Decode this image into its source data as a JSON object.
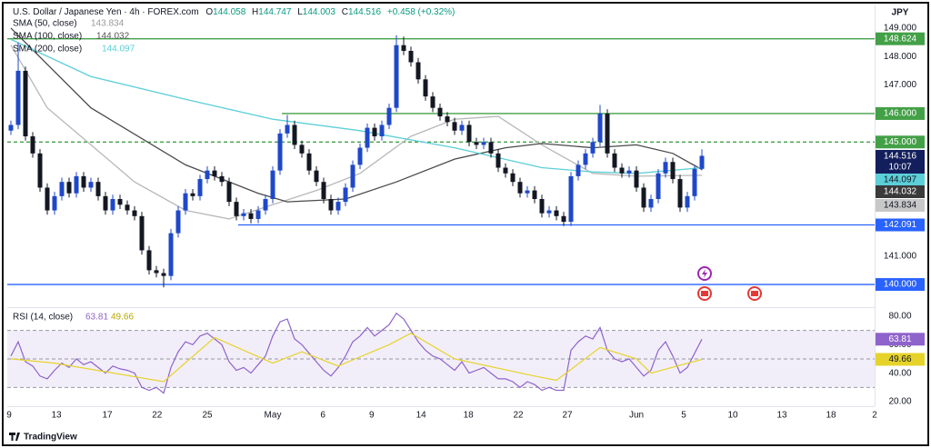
{
  "header": {
    "symbol": "U.S. Dollar / Japanese Yen · 4h · FOREX.com",
    "ohlc_letters": [
      "O",
      "H",
      "L",
      "C"
    ],
    "change": "+0.458 (+0.32%)"
  },
  "currency": "JPY",
  "countdown": "10:07",
  "branding": "TradingView",
  "chart_data": [
    {
      "type": "candlestick",
      "up_color": "#1f48c9",
      "down_color": "#131722",
      "xlim": [
        0,
        119.25
      ],
      "xticks": [
        {
          "value": 0.25,
          "label": "9"
        },
        {
          "value": 6.75,
          "label": "13"
        },
        {
          "value": 13.75,
          "label": "17"
        },
        {
          "value": 20.6,
          "label": "22"
        },
        {
          "value": 27.5,
          "label": "25"
        },
        {
          "value": 36.5,
          "label": "May"
        },
        {
          "value": 43.4,
          "label": "6"
        },
        {
          "value": 50.1,
          "label": "9"
        },
        {
          "value": 56.9,
          "label": "14"
        },
        {
          "value": 63.4,
          "label": "18"
        },
        {
          "value": 70.25,
          "label": "22"
        },
        {
          "value": 77,
          "label": "27"
        },
        {
          "value": 86.5,
          "label": "Jun"
        },
        {
          "value": 93,
          "label": "5"
        },
        {
          "value": 99.75,
          "label": "10"
        },
        {
          "value": 106.5,
          "label": "13"
        },
        {
          "value": 113.25,
          "label": "18"
        },
        {
          "value": 119.25,
          "label": "2"
        }
      ],
      "ylim": [
        139.3,
        149.73
      ],
      "yticks": [
        {
          "value": 149,
          "label": "149.000"
        },
        {
          "value": 148,
          "label": "148.000"
        },
        {
          "value": 147,
          "label": "147.000"
        },
        {
          "value": 141,
          "label": "141.000"
        }
      ],
      "candles": [
        [
          145.4,
          145.75,
          145.25,
          145.6
        ],
        [
          145.6,
          148.5,
          145.45,
          147.5
        ],
        [
          147.5,
          147.65,
          145.05,
          145.2
        ],
        [
          145.2,
          145.35,
          144.45,
          144.6
        ],
        [
          144.6,
          144.75,
          143.25,
          143.4
        ],
        [
          143.4,
          143.55,
          142.45,
          142.6
        ],
        [
          142.6,
          143.25,
          142.45,
          143.1
        ],
        [
          143.1,
          143.75,
          142.95,
          143.6
        ],
        [
          143.6,
          143.75,
          143.05,
          143.2
        ],
        [
          143.2,
          143.95,
          143.05,
          143.8
        ],
        [
          143.8,
          143.95,
          143.25,
          143.4
        ],
        [
          143.4,
          143.75,
          143.25,
          143.6
        ],
        [
          143.6,
          143.75,
          142.95,
          143.1
        ],
        [
          143.1,
          143.25,
          142.45,
          142.6
        ],
        [
          142.6,
          143.15,
          142.45,
          143
        ],
        [
          143,
          143.15,
          142.65,
          142.8
        ],
        [
          142.8,
          142.95,
          142.45,
          142.6
        ],
        [
          142.6,
          142.75,
          142.25,
          142.4
        ],
        [
          142.4,
          142.55,
          141.05,
          141.2
        ],
        [
          141.2,
          141.35,
          140.35,
          140.5
        ],
        [
          140.5,
          140.65,
          140.25,
          140.4
        ],
        [
          140.4,
          140.55,
          139.9,
          140.3
        ],
        [
          140.3,
          141.95,
          140.15,
          141.8
        ],
        [
          141.8,
          142.75,
          141.65,
          142.6
        ],
        [
          142.6,
          143.35,
          142.45,
          143.2
        ],
        [
          143.2,
          143.35,
          142.95,
          143.1
        ],
        [
          143.1,
          143.85,
          142.95,
          143.7
        ],
        [
          143.7,
          144.15,
          143.55,
          144
        ],
        [
          144,
          144.15,
          143.65,
          143.8
        ],
        [
          143.8,
          143.95,
          143.45,
          143.6
        ],
        [
          143.6,
          143.75,
          142.75,
          142.9
        ],
        [
          142.9,
          143.05,
          142.25,
          142.4
        ],
        [
          142.4,
          142.65,
          142.25,
          142.5
        ],
        [
          142.5,
          142.65,
          142.15,
          142.3
        ],
        [
          142.3,
          142.75,
          142.15,
          142.6
        ],
        [
          142.6,
          143.15,
          142.45,
          143
        ],
        [
          143,
          144.15,
          142.85,
          144
        ],
        [
          144,
          145.45,
          143.85,
          145.3
        ],
        [
          145.3,
          145.95,
          145.15,
          145.6
        ],
        [
          145.6,
          145.75,
          144.75,
          144.9
        ],
        [
          144.9,
          145.05,
          144.45,
          144.6
        ],
        [
          144.6,
          144.75,
          143.85,
          144
        ],
        [
          144,
          144.15,
          143.45,
          143.6
        ],
        [
          143.6,
          143.75,
          142.85,
          143
        ],
        [
          143,
          143.15,
          142.45,
          142.6
        ],
        [
          142.6,
          143.05,
          142.45,
          142.9
        ],
        [
          142.9,
          143.55,
          142.75,
          143.4
        ],
        [
          143.4,
          144.35,
          143.25,
          144.2
        ],
        [
          144.2,
          144.95,
          144.05,
          144.8
        ],
        [
          144.8,
          145.65,
          144.65,
          145.5
        ],
        [
          145.5,
          145.65,
          145.05,
          145.2
        ],
        [
          145.2,
          145.75,
          145.05,
          145.6
        ],
        [
          145.6,
          146.35,
          145.45,
          146.2
        ],
        [
          146.2,
          148.75,
          146.05,
          148.4
        ],
        [
          148.4,
          148.7,
          148.05,
          148.2
        ],
        [
          148.2,
          148.35,
          147.65,
          147.8
        ],
        [
          147.8,
          147.95,
          147.05,
          147.2
        ],
        [
          147.2,
          147.35,
          146.45,
          146.6
        ],
        [
          146.6,
          146.75,
          146.05,
          146.2
        ],
        [
          146.2,
          146.35,
          145.75,
          145.9
        ],
        [
          145.9,
          146.05,
          145.55,
          145.7
        ],
        [
          145.7,
          145.85,
          145.25,
          145.4
        ],
        [
          145.4,
          145.75,
          145.25,
          145.6
        ],
        [
          145.6,
          145.75,
          144.85,
          145
        ],
        [
          145,
          145.15,
          144.75,
          144.9
        ],
        [
          144.9,
          145.15,
          144.75,
          145
        ],
        [
          145,
          145.15,
          144.45,
          144.6
        ],
        [
          144.6,
          144.75,
          143.95,
          144.1
        ],
        [
          144.1,
          144.25,
          143.75,
          143.9
        ],
        [
          143.9,
          144.05,
          143.45,
          143.6
        ],
        [
          143.6,
          143.75,
          143.05,
          143.2
        ],
        [
          143.2,
          143.45,
          143.05,
          143.3
        ],
        [
          143.3,
          143.45,
          142.85,
          143
        ],
        [
          143,
          143.15,
          142.35,
          142.5
        ],
        [
          142.5,
          142.75,
          142.35,
          142.6
        ],
        [
          142.6,
          142.75,
          142.25,
          142.4
        ],
        [
          142.4,
          142.55,
          142.05,
          142.2
        ],
        [
          142.2,
          143.95,
          142.05,
          143.8
        ],
        [
          143.8,
          144.35,
          143.65,
          144.2
        ],
        [
          144.2,
          144.75,
          144.05,
          144.6
        ],
        [
          144.6,
          145.15,
          144.45,
          145
        ],
        [
          145,
          146.3,
          144.85,
          146
        ],
        [
          146,
          146.15,
          144.45,
          144.6
        ],
        [
          144.6,
          144.75,
          143.95,
          144.1
        ],
        [
          144.1,
          144.25,
          143.75,
          143.9
        ],
        [
          143.9,
          144.15,
          143.75,
          144
        ],
        [
          144,
          144.15,
          143.25,
          143.4
        ],
        [
          143.4,
          143.55,
          142.55,
          142.7
        ],
        [
          142.7,
          143.15,
          142.55,
          143
        ],
        [
          143,
          144.05,
          142.85,
          143.9
        ],
        [
          143.9,
          144.45,
          143.75,
          144.3
        ],
        [
          144.3,
          144.45,
          143.55,
          143.7
        ],
        [
          143.7,
          143.85,
          142.55,
          142.7
        ],
        [
          142.7,
          143.25,
          142.55,
          143.1
        ],
        [
          143.1,
          144.2,
          142.95,
          144.058
        ],
        [
          144.058,
          144.747,
          144.003,
          144.516
        ]
      ],
      "series": [
        {
          "name": "SMA (50, close)",
          "color": "#b8b8b8",
          "x": [
            0,
            5,
            11,
            17,
            24,
            30,
            36,
            42,
            48,
            55,
            61,
            67,
            73,
            80,
            86,
            95
          ],
          "values": [
            148.4,
            146.2,
            144.9,
            143.6,
            142.6,
            142.3,
            142.8,
            143.3,
            143.9,
            145.2,
            145.8,
            145.9,
            144.9,
            143.9,
            143.8,
            143.834
          ]
        },
        {
          "name": "SMA (100, close)",
          "color": "#4a4a4a",
          "x": [
            0,
            11,
            24,
            34,
            38,
            46,
            53,
            61,
            68,
            73,
            80,
            86,
            91,
            95
          ],
          "values": [
            149,
            146.2,
            144.2,
            143.2,
            142.9,
            143,
            143.6,
            144.4,
            144.8,
            144.95,
            144.8,
            144.9,
            144.6,
            144.032
          ]
        },
        {
          "name": "SMA (200, close)",
          "color": "#5ccfd8",
          "x": [
            0,
            11,
            24,
            36,
            48,
            61,
            73,
            80,
            86,
            95
          ],
          "values": [
            148.6,
            147.3,
            146.5,
            145.8,
            145.4,
            144.8,
            144.1,
            143.95,
            143.9,
            144.097
          ]
        }
      ],
      "levels": [
        {
          "value": 148.624,
          "label": "148.624",
          "color": "#43a047",
          "style": "solid"
        },
        {
          "value": 146,
          "label": "146.000",
          "color": "#43a047",
          "style": "solid"
        },
        {
          "value": 145,
          "label": "145.000",
          "color": "#43a047",
          "style": "dashed"
        },
        {
          "value": 142.091,
          "label": "142.091",
          "color": "#2962ff",
          "style": "solid"
        },
        {
          "value": 140,
          "label": "140.000",
          "color": "#2962ff",
          "style": "solid"
        }
      ]
    },
    {
      "type": "line",
      "title": "RSI (14, close)",
      "ylim": [
        9.8,
        86.3
      ],
      "yticks": [
        {
          "value": 80,
          "label": "80.00"
        },
        {
          "value": 60,
          "label": "60.00"
        },
        {
          "value": 40,
          "label": "40.00"
        },
        {
          "value": 20,
          "label": "20.00"
        }
      ],
      "bands": {
        "upper": 70,
        "middle": 50,
        "lower": 30
      },
      "band_color": "#7e57c2",
      "series": [
        {
          "color": "#8e63cc",
          "values": [
            52,
            62,
            48,
            45,
            38,
            36,
            42,
            47,
            44,
            50,
            46,
            48,
            44,
            40,
            45,
            43,
            42,
            40,
            30,
            28,
            30,
            26,
            44,
            55,
            62,
            60,
            66,
            68,
            64,
            60,
            48,
            42,
            44,
            40,
            46,
            52,
            66,
            76,
            78,
            64,
            60,
            54,
            48,
            42,
            38,
            44,
            52,
            62,
            66,
            72,
            66,
            70,
            74,
            82,
            78,
            70,
            62,
            56,
            52,
            50,
            46,
            42,
            48,
            40,
            42,
            44,
            40,
            36,
            36,
            34,
            30,
            34,
            32,
            28,
            30,
            28,
            28,
            56,
            62,
            66,
            64,
            72,
            56,
            50,
            48,
            50,
            44,
            38,
            42,
            56,
            62,
            52,
            40,
            44,
            54,
            63.81
          ]
        },
        {
          "color": "#e6d32a",
          "x": [
            0,
            6,
            21,
            28,
            36,
            40,
            45,
            52,
            55,
            61,
            72,
            75,
            81,
            86,
            88,
            95
          ],
          "values": [
            50,
            47,
            34,
            65,
            47,
            55,
            45,
            60,
            68,
            50,
            38,
            35,
            58,
            50,
            40,
            49.66
          ]
        }
      ]
    }
  ]
}
